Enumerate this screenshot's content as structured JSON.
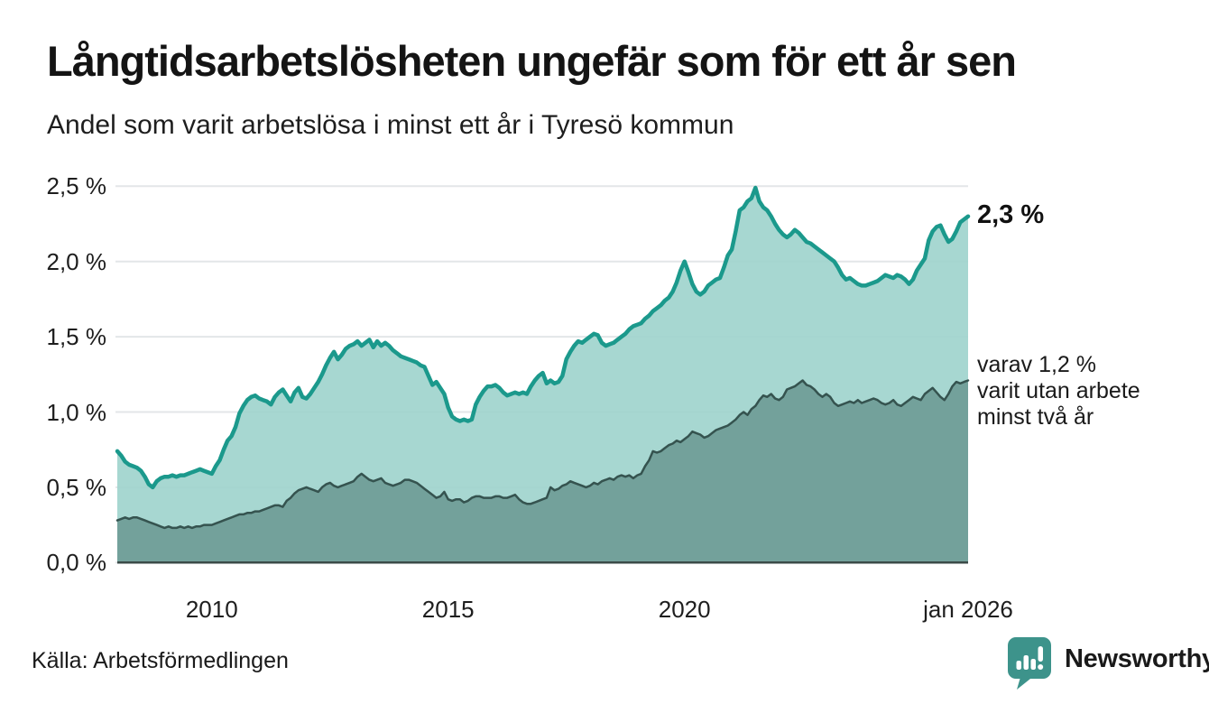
{
  "header": {
    "title": "Långtidsarbetslösheten ungefär som för ett år sen",
    "subtitle": "Andel som varit arbetslösa i minst ett år i Tyresö kommun"
  },
  "chart_data": {
    "type": "area",
    "title": "Långtidsarbetslösheten ungefär som för ett år sen",
    "subtitle": "Andel som varit arbetslösa i minst ett år i Tyresö kommun",
    "unit": "%",
    "x_start": "2008-01",
    "x_end": "2026-01",
    "x_frequency": "monthly",
    "ylim": [
      0,
      2.6
    ],
    "grid": "horizontal",
    "y_ticks": [
      {
        "label": "0,0 %",
        "value": 0.0
      },
      {
        "label": "0,5 %",
        "value": 0.5
      },
      {
        "label": "1,0 %",
        "value": 1.0
      },
      {
        "label": "1,5 %",
        "value": 1.5
      },
      {
        "label": "2,0 %",
        "value": 2.0
      },
      {
        "label": "2,5 %",
        "value": 2.5
      }
    ],
    "x_ticks": [
      {
        "label": "2010",
        "month_index": 24
      },
      {
        "label": "2015",
        "month_index": 84
      },
      {
        "label": "2020",
        "month_index": 144
      },
      {
        "label": "jan 2026",
        "month_index": 216
      }
    ],
    "series": [
      {
        "name": "Andel som varit arbetslösa i minst ett år",
        "end_value_label": "2,3 %",
        "values": [
          0.74,
          0.71,
          0.67,
          0.65,
          0.64,
          0.63,
          0.61,
          0.57,
          0.52,
          0.5,
          0.54,
          0.56,
          0.57,
          0.57,
          0.58,
          0.57,
          0.58,
          0.58,
          0.59,
          0.6,
          0.61,
          0.62,
          0.61,
          0.6,
          0.59,
          0.64,
          0.68,
          0.75,
          0.81,
          0.84,
          0.9,
          0.99,
          1.04,
          1.08,
          1.1,
          1.11,
          1.09,
          1.08,
          1.07,
          1.05,
          1.1,
          1.13,
          1.15,
          1.11,
          1.07,
          1.13,
          1.16,
          1.1,
          1.09,
          1.12,
          1.16,
          1.2,
          1.25,
          1.31,
          1.36,
          1.4,
          1.35,
          1.38,
          1.42,
          1.44,
          1.45,
          1.47,
          1.44,
          1.46,
          1.48,
          1.43,
          1.47,
          1.44,
          1.46,
          1.44,
          1.41,
          1.39,
          1.37,
          1.36,
          1.35,
          1.34,
          1.33,
          1.31,
          1.3,
          1.24,
          1.18,
          1.2,
          1.16,
          1.12,
          1.03,
          0.97,
          0.95,
          0.94,
          0.95,
          0.94,
          0.95,
          1.05,
          1.1,
          1.14,
          1.17,
          1.17,
          1.18,
          1.16,
          1.13,
          1.11,
          1.12,
          1.13,
          1.12,
          1.13,
          1.12,
          1.17,
          1.21,
          1.24,
          1.26,
          1.19,
          1.21,
          1.19,
          1.2,
          1.24,
          1.35,
          1.4,
          1.44,
          1.47,
          1.46,
          1.48,
          1.5,
          1.52,
          1.51,
          1.46,
          1.44,
          1.45,
          1.46,
          1.48,
          1.5,
          1.52,
          1.55,
          1.57,
          1.58,
          1.59,
          1.62,
          1.64,
          1.67,
          1.69,
          1.71,
          1.74,
          1.76,
          1.8,
          1.86,
          1.94,
          2.0,
          1.93,
          1.85,
          1.8,
          1.78,
          1.8,
          1.84,
          1.86,
          1.88,
          1.89,
          1.96,
          2.04,
          2.08,
          2.2,
          2.34,
          2.36,
          2.4,
          2.42,
          2.49,
          2.4,
          2.36,
          2.34,
          2.3,
          2.25,
          2.21,
          2.18,
          2.16,
          2.18,
          2.21,
          2.19,
          2.16,
          2.13,
          2.12,
          2.1,
          2.08,
          2.06,
          2.04,
          2.02,
          2.0,
          1.96,
          1.91,
          1.88,
          1.89,
          1.87,
          1.85,
          1.84,
          1.84,
          1.85,
          1.86,
          1.87,
          1.89,
          1.91,
          1.9,
          1.89,
          1.91,
          1.9,
          1.88,
          1.85,
          1.88,
          1.94,
          1.98,
          2.02,
          2.14,
          2.2,
          2.23,
          2.24,
          2.18,
          2.13,
          2.15,
          2.2,
          2.26,
          2.28,
          2.3
        ]
      },
      {
        "name": "varav utan arbete minst två år",
        "end_value_label": "1,2 %",
        "values": [
          0.28,
          0.29,
          0.3,
          0.29,
          0.3,
          0.3,
          0.29,
          0.28,
          0.27,
          0.26,
          0.25,
          0.24,
          0.23,
          0.24,
          0.23,
          0.23,
          0.24,
          0.23,
          0.24,
          0.23,
          0.24,
          0.24,
          0.25,
          0.25,
          0.25,
          0.26,
          0.27,
          0.28,
          0.29,
          0.3,
          0.31,
          0.32,
          0.32,
          0.33,
          0.33,
          0.34,
          0.34,
          0.35,
          0.36,
          0.37,
          0.38,
          0.38,
          0.37,
          0.41,
          0.43,
          0.46,
          0.48,
          0.49,
          0.5,
          0.49,
          0.48,
          0.47,
          0.5,
          0.52,
          0.53,
          0.51,
          0.5,
          0.51,
          0.52,
          0.53,
          0.54,
          0.57,
          0.59,
          0.57,
          0.55,
          0.54,
          0.55,
          0.56,
          0.53,
          0.52,
          0.51,
          0.52,
          0.53,
          0.55,
          0.55,
          0.54,
          0.53,
          0.51,
          0.49,
          0.47,
          0.45,
          0.43,
          0.44,
          0.47,
          0.42,
          0.41,
          0.42,
          0.42,
          0.4,
          0.41,
          0.43,
          0.44,
          0.44,
          0.43,
          0.43,
          0.43,
          0.44,
          0.44,
          0.43,
          0.43,
          0.44,
          0.45,
          0.42,
          0.4,
          0.39,
          0.39,
          0.4,
          0.41,
          0.42,
          0.43,
          0.5,
          0.48,
          0.49,
          0.51,
          0.52,
          0.54,
          0.53,
          0.52,
          0.51,
          0.5,
          0.51,
          0.53,
          0.52,
          0.54,
          0.55,
          0.56,
          0.55,
          0.57,
          0.58,
          0.57,
          0.58,
          0.56,
          0.58,
          0.59,
          0.64,
          0.68,
          0.74,
          0.73,
          0.74,
          0.76,
          0.78,
          0.79,
          0.81,
          0.8,
          0.82,
          0.84,
          0.87,
          0.86,
          0.85,
          0.83,
          0.84,
          0.86,
          0.88,
          0.89,
          0.9,
          0.91,
          0.93,
          0.95,
          0.98,
          1.0,
          0.98,
          1.02,
          1.04,
          1.08,
          1.11,
          1.1,
          1.12,
          1.09,
          1.08,
          1.1,
          1.15,
          1.16,
          1.17,
          1.19,
          1.21,
          1.18,
          1.17,
          1.15,
          1.12,
          1.1,
          1.12,
          1.1,
          1.06,
          1.04,
          1.05,
          1.06,
          1.07,
          1.06,
          1.08,
          1.06,
          1.07,
          1.08,
          1.09,
          1.08,
          1.06,
          1.05,
          1.06,
          1.08,
          1.05,
          1.04,
          1.06,
          1.08,
          1.1,
          1.09,
          1.08,
          1.12,
          1.14,
          1.16,
          1.13,
          1.1,
          1.08,
          1.12,
          1.17,
          1.2,
          1.19,
          1.2,
          1.21
        ]
      }
    ],
    "annotations": {
      "total_end_label": "2,3 %",
      "two_years_lines": [
        "varav 1,2 %",
        "varit utan arbete",
        "minst två år"
      ]
    },
    "legend": "none"
  },
  "footer": {
    "source": "Källa: Arbetsförmedlingen",
    "brand": "Newsworthy"
  },
  "colors": {
    "line_total": "#1b998c",
    "fill_total": "#9dd3cc",
    "line_two_years": "#35534f",
    "fill_two_years": "#6f9d97",
    "baseline": "#3b4b48",
    "gridline": "#e3e6e8",
    "brand_teal": "#3b938e",
    "text": "#1a1a1a"
  }
}
